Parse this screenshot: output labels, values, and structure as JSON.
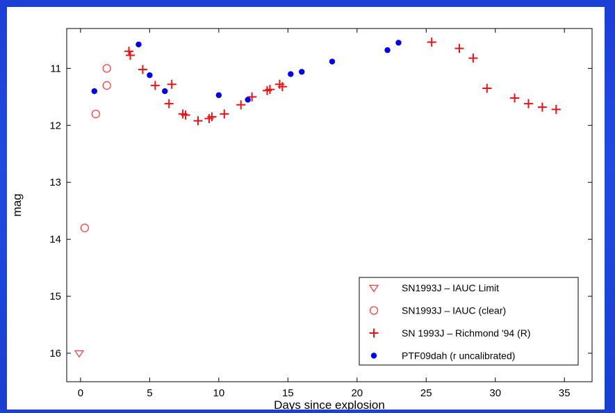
{
  "chart_data": {
    "type": "scatter",
    "xlabel": "Days since explosion",
    "ylabel": "mag",
    "xlim": [
      -1,
      37
    ],
    "ylim": [
      16.5,
      10.3
    ],
    "y_inverted": true,
    "xticks": [
      0,
      5,
      10,
      15,
      20,
      25,
      30,
      35
    ],
    "yticks": [
      11,
      12,
      13,
      14,
      15,
      16
    ],
    "grid": false,
    "legend_position": "bottom-right",
    "series": [
      {
        "name": "SN1993J – IAUC Limit",
        "marker": "triangle-down",
        "color": "#ff4040",
        "x": [
          -0.1
        ],
        "y": [
          16.0
        ]
      },
      {
        "name": "SN1993J – IAUC (clear)",
        "marker": "circle-open",
        "color": "#ff4040",
        "x": [
          0.3,
          1.1,
          1.9,
          1.9
        ],
        "y": [
          13.8,
          11.8,
          11.3,
          11.0
        ]
      },
      {
        "name": "SN 1993J – Richmond '94 (R)",
        "marker": "plus",
        "color": "#ee1111",
        "x": [
          3.5,
          3.6,
          4.5,
          5.4,
          6.4,
          6.6,
          7.4,
          7.6,
          8.5,
          9.3,
          9.5,
          10.4,
          11.6,
          12.4,
          13.5,
          13.7,
          14.4,
          14.6,
          25.4,
          27.4,
          28.4,
          29.4,
          31.4,
          32.4,
          33.4,
          34.4
        ],
        "y": [
          10.7,
          10.77,
          11.02,
          11.3,
          11.62,
          11.28,
          11.8,
          11.82,
          11.92,
          11.88,
          11.85,
          11.8,
          11.64,
          11.5,
          11.39,
          11.37,
          11.28,
          11.32,
          10.54,
          10.65,
          10.82,
          11.35,
          11.52,
          11.62,
          11.68,
          11.72
        ]
      },
      {
        "name": "PTF09dah (r uncalibrated)",
        "marker": "circle-filled",
        "color": "#0000ee",
        "x": [
          1.0,
          4.2,
          5.0,
          6.1,
          10.0,
          12.1,
          15.2,
          16.0,
          18.2,
          22.2,
          23.0
        ],
        "y": [
          11.4,
          10.58,
          11.12,
          11.4,
          11.47,
          11.55,
          11.1,
          11.06,
          10.88,
          10.68,
          10.55
        ]
      }
    ]
  }
}
